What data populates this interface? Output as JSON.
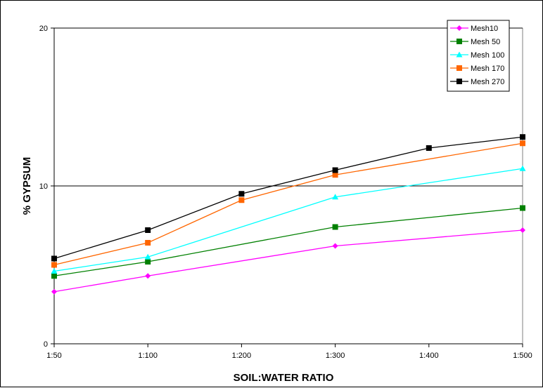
{
  "chart_data": {
    "type": "line",
    "title": "",
    "xlabel": "SOIL:WATER RATIO",
    "ylabel": "% GYPSUM",
    "categories": [
      "1:50",
      "1:100",
      "1:200",
      "1:300",
      "1:400",
      "1:500"
    ],
    "ylim": [
      0,
      20
    ],
    "yticks": [
      0,
      10,
      20
    ],
    "grid": "horizontal-major",
    "legend_position": "top-right",
    "series": [
      {
        "name": "Mesh10",
        "color": "#ff00ff",
        "marker": "diamond",
        "values": [
          3.3,
          4.3,
          null,
          6.2,
          null,
          7.2
        ]
      },
      {
        "name": "Mesh 50",
        "color": "#008000",
        "marker": "square",
        "values": [
          4.3,
          5.2,
          null,
          7.4,
          null,
          8.6
        ]
      },
      {
        "name": "Mesh 100",
        "color": "#00ffff",
        "marker": "triangle",
        "values": [
          4.6,
          5.5,
          null,
          9.3,
          null,
          11.1
        ]
      },
      {
        "name": "Mesh 170",
        "color": "#ff6600",
        "marker": "square",
        "values": [
          5.0,
          6.4,
          9.1,
          10.7,
          null,
          12.7
        ]
      },
      {
        "name": "Mesh 270",
        "color": "#000000",
        "marker": "square",
        "values": [
          5.4,
          7.2,
          9.5,
          11.0,
          12.4,
          13.1
        ]
      }
    ]
  }
}
